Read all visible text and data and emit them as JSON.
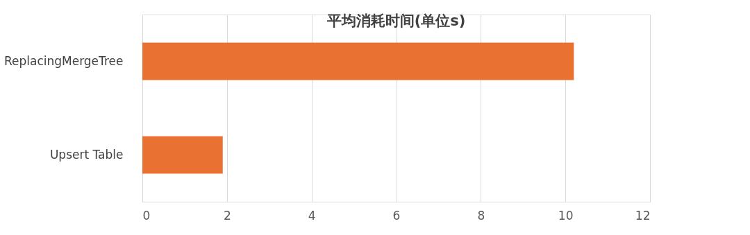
{
  "chart_data": {
    "type": "bar",
    "orientation": "horizontal",
    "title": "平均消耗时间(单位s)",
    "categories": [
      "ReplacingMergeTree",
      "Upsert Table"
    ],
    "series": [
      {
        "color": "#e97132",
        "values": [
          10.2,
          1.9
        ]
      }
    ],
    "xlim": [
      0,
      12
    ],
    "xticks": [
      0,
      2,
      4,
      6,
      8,
      10,
      12
    ],
    "grid": "x",
    "legend": false
  }
}
